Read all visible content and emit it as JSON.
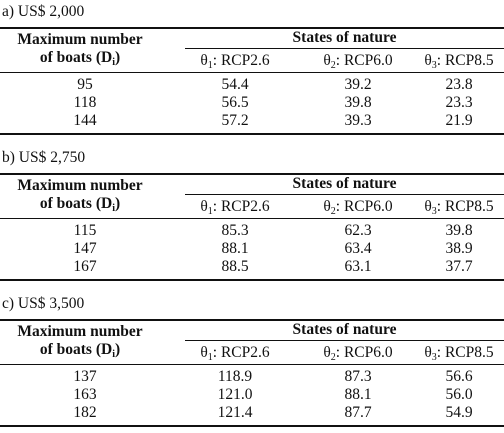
{
  "panels": [
    {
      "caption": "a) US$ 2,000",
      "header": {
        "max_label_line1": "Maximum number",
        "max_label_line2_prefix": "of boats (D",
        "max_label_sub": "i",
        "max_label_suffix": ")",
        "states": "States of nature",
        "theta": "θ",
        "cols": [
          {
            "sub": "1",
            "label": ": RCP2.6"
          },
          {
            "sub": "2",
            "label": ": RCP6.0"
          },
          {
            "sub": "3",
            "label": ": RCP8.5"
          }
        ]
      },
      "rows": [
        {
          "d": "95",
          "c1": "54.4",
          "c2": "39.2",
          "c3": "23.8"
        },
        {
          "d": "118",
          "c1": "56.5",
          "c2": "39.8",
          "c3": "23.3"
        },
        {
          "d": "144",
          "c1": "57.2",
          "c2": "39.3",
          "c3": "21.9"
        }
      ]
    },
    {
      "caption": "b) US$ 2,750",
      "header": {
        "max_label_line1": "Maximum number",
        "max_label_line2_prefix": "of boats (D",
        "max_label_sub": "i",
        "max_label_suffix": ")",
        "states": "States of nature",
        "theta": "θ",
        "cols": [
          {
            "sub": "1",
            "label": ": RCP2.6"
          },
          {
            "sub": "2",
            "label": ": RCP6.0"
          },
          {
            "sub": "3",
            "label": ": RCP8.5"
          }
        ]
      },
      "rows": [
        {
          "d": "115",
          "c1": "85.3",
          "c2": "62.3",
          "c3": "39.8"
        },
        {
          "d": "147",
          "c1": "88.1",
          "c2": "63.4",
          "c3": "38.9"
        },
        {
          "d": "167",
          "c1": "88.5",
          "c2": "63.1",
          "c3": "37.7"
        }
      ]
    },
    {
      "caption": "c) US$ 3,500",
      "header": {
        "max_label_line1": "Maximum number",
        "max_label_line2_prefix": "of boats (D",
        "max_label_sub": "i",
        "max_label_suffix": ")",
        "states": "States of nature",
        "theta": "θ",
        "cols": [
          {
            "sub": "1",
            "label": ": RCP2.6"
          },
          {
            "sub": "2",
            "label": ": RCP6.0"
          },
          {
            "sub": "3",
            "label": ": RCP8.5"
          }
        ]
      },
      "rows": [
        {
          "d": "137",
          "c1": "118.9",
          "c2": "87.3",
          "c3": "56.6"
        },
        {
          "d": "163",
          "c1": "121.0",
          "c2": "88.1",
          "c3": "56.0"
        },
        {
          "d": "182",
          "c1": "121.4",
          "c2": "87.7",
          "c3": "54.9"
        }
      ]
    }
  ]
}
